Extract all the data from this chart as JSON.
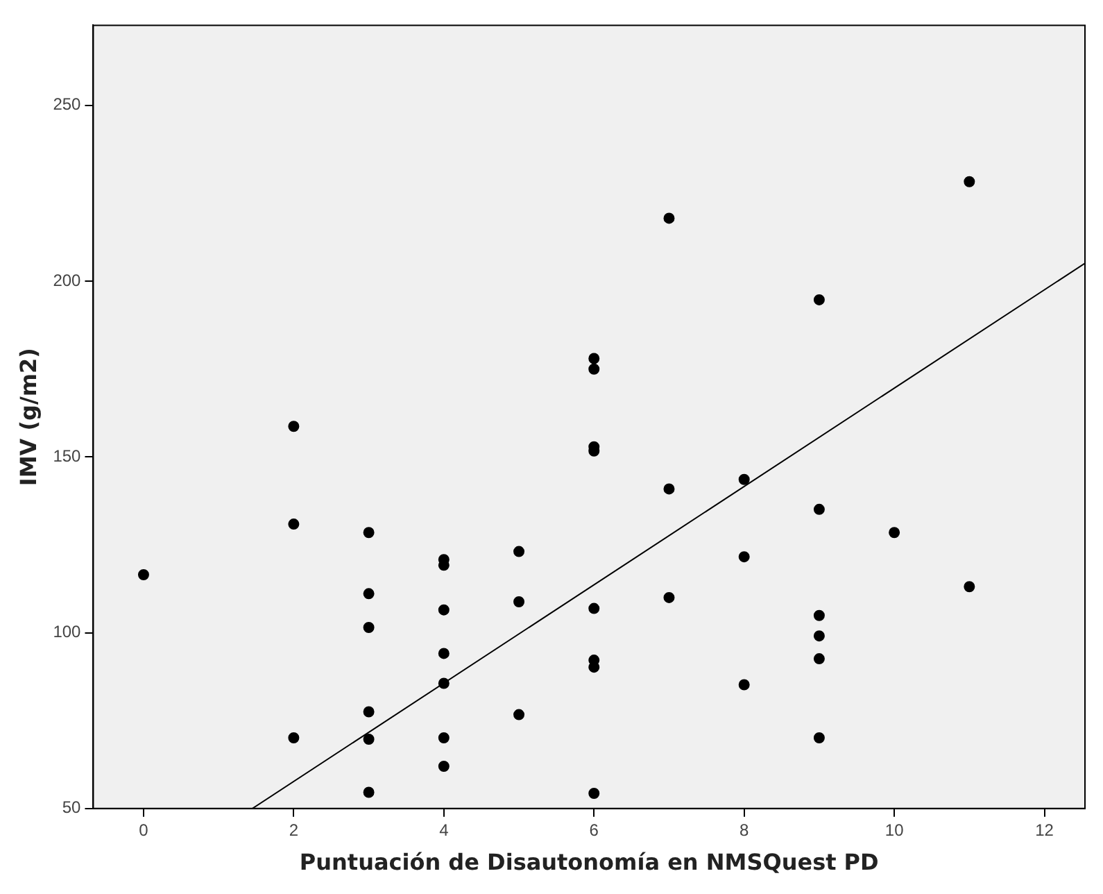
{
  "chart_data": {
    "type": "scatter",
    "xlabel": "Puntuación de Disautonomía en NMSQuest PD",
    "ylabel": "IMV (g/m2)",
    "xlim": [
      -0.67,
      12.54
    ],
    "xticks": [
      0,
      2,
      4,
      6,
      8,
      10,
      12
    ],
    "ylim": [
      50,
      272.8
    ],
    "yticks": [
      50,
      100,
      150,
      200,
      250
    ],
    "grid": false,
    "legend": false,
    "series": [
      {
        "type": "scatter",
        "color": "#000000",
        "marker": "circle",
        "x": [
          0,
          2,
          2,
          2,
          3,
          3,
          3,
          3,
          3,
          3,
          4,
          4,
          4,
          4,
          4,
          4,
          4,
          5,
          5,
          5,
          6,
          6,
          6,
          6,
          6,
          6,
          6,
          6,
          7,
          7,
          7,
          8,
          8,
          8,
          9,
          9,
          9,
          9,
          9,
          9,
          10,
          11,
          11
        ],
        "values": [
          116.5,
          158.7,
          130.9,
          70.1,
          128.5,
          111.1,
          101.5,
          77.5,
          69.7,
          54.6,
          120.8,
          119.2,
          106.5,
          94.1,
          85.6,
          70.1,
          62.0,
          123.1,
          108.8,
          76.7,
          178.0,
          175.0,
          152.9,
          151.7,
          106.9,
          92.2,
          90.2,
          54.3,
          217.9,
          140.9,
          110.0,
          143.6,
          121.6,
          85.2,
          194.7,
          135.1,
          104.9,
          99.1,
          92.6,
          70.1,
          128.5,
          228.3,
          113.1
        ]
      },
      {
        "type": "line",
        "color": "#000000",
        "marker": "none",
        "line_style": "solid",
        "x": [
          1.45,
          12.54
        ],
        "values": [
          50,
          205.1
        ]
      }
    ]
  }
}
